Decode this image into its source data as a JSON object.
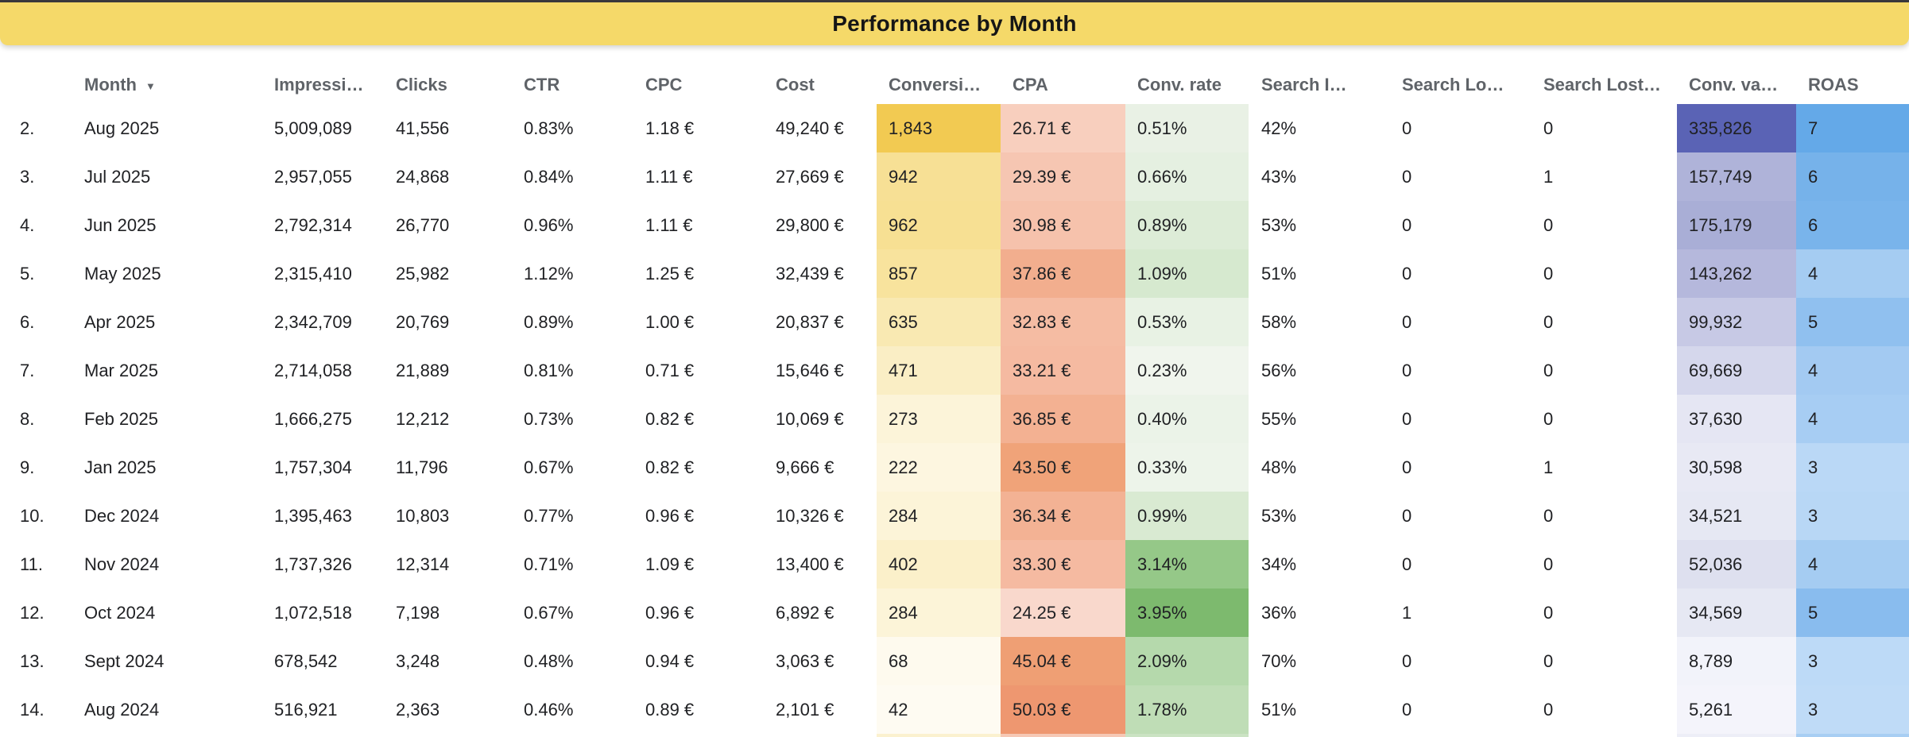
{
  "title": "Performance by Month",
  "colors": {
    "title_bg": "#f5d969",
    "title_text": "#161616",
    "top_edge": "#3a383b",
    "header_text": "#5f6368",
    "body_text": "#202124"
  },
  "header": {
    "month_sort_indicator": "▼"
  },
  "columns": [
    {
      "key": "num",
      "label": ""
    },
    {
      "key": "month",
      "label": "Month",
      "sorted": true
    },
    {
      "key": "impressions",
      "label": "Impressi…"
    },
    {
      "key": "clicks",
      "label": "Clicks"
    },
    {
      "key": "ctr",
      "label": "CTR"
    },
    {
      "key": "cpc",
      "label": "CPC"
    },
    {
      "key": "cost",
      "label": "Cost"
    },
    {
      "key": "conversions",
      "label": "Conversi…"
    },
    {
      "key": "cpa",
      "label": "CPA"
    },
    {
      "key": "conv_rate",
      "label": "Conv. rate"
    },
    {
      "key": "search_is",
      "label": "Search I…"
    },
    {
      "key": "search_lost_budget",
      "label": "Search Lo…"
    },
    {
      "key": "search_lost_rank",
      "label": "Search Lost…"
    },
    {
      "key": "conv_value",
      "label": "Conv. va…"
    },
    {
      "key": "roas",
      "label": "ROAS"
    }
  ],
  "rows": [
    {
      "num": "2.",
      "month": "Aug 2025",
      "impressions": "5,009,089",
      "clicks": "41,556",
      "ctr": "0.83%",
      "cpc": "1.18 €",
      "cost": "49,240 €",
      "conversions": "1,843",
      "cpa": "26.71 €",
      "conv_rate": "0.51%",
      "search_is": "42%",
      "search_lost_budget": "0",
      "search_lost_rank": "0",
      "conv_value": "335,826",
      "roas": "7",
      "cell_colors": {
        "conversions": "#f2ca52",
        "cpa": "#f8cfbe",
        "conv_rate": "#e9f1e5",
        "conv_value": "#5a63b5",
        "roas": "#64a9e8"
      }
    },
    {
      "num": "3.",
      "month": "Jul 2025",
      "impressions": "2,957,055",
      "clicks": "24,868",
      "ctr": "0.84%",
      "cpc": "1.11 €",
      "cost": "27,669 €",
      "conversions": "942",
      "cpa": "29.39 €",
      "conv_rate": "0.66%",
      "search_is": "43%",
      "search_lost_budget": "0",
      "search_lost_rank": "1",
      "conv_value": "157,749",
      "roas": "6",
      "cell_colors": {
        "conversions": "#f7e095",
        "cpa": "#f6c6b2",
        "conv_rate": "#e5f0e1",
        "conv_value": "#afb3d9",
        "roas": "#76b2ea"
      }
    },
    {
      "num": "4.",
      "month": "Jun 2025",
      "impressions": "2,792,314",
      "clicks": "26,770",
      "ctr": "0.96%",
      "cpc": "1.11 €",
      "cost": "29,800 €",
      "conversions": "962",
      "cpa": "30.98 €",
      "conv_rate": "0.89%",
      "search_is": "53%",
      "search_lost_budget": "0",
      "search_lost_rank": "0",
      "conv_value": "175,179",
      "roas": "6",
      "cell_colors": {
        "conversions": "#f7e093",
        "cpa": "#f6c2ac",
        "conv_rate": "#ddecd7",
        "conv_value": "#a9aed6",
        "roas": "#79b4eb"
      }
    },
    {
      "num": "5.",
      "month": "May 2025",
      "impressions": "2,315,410",
      "clicks": "25,982",
      "ctr": "1.12%",
      "cpc": "1.25 €",
      "cost": "32,439 €",
      "conversions": "857",
      "cpa": "37.86 €",
      "conv_rate": "1.09%",
      "search_is": "51%",
      "search_lost_budget": "0",
      "search_lost_rank": "0",
      "conv_value": "143,262",
      "roas": "4",
      "cell_colors": {
        "conversions": "#f8e39d",
        "cpa": "#f2ae8e",
        "conv_rate": "#d6e9cf",
        "conv_value": "#b5b8dc",
        "roas": "#a5ccf2"
      }
    },
    {
      "num": "6.",
      "month": "Apr 2025",
      "impressions": "2,342,709",
      "clicks": "20,769",
      "ctr": "0.89%",
      "cpc": "1.00 €",
      "cost": "20,837 €",
      "conversions": "635",
      "cpa": "32.83 €",
      "conv_rate": "0.53%",
      "search_is": "58%",
      "search_lost_budget": "0",
      "search_lost_rank": "0",
      "conv_value": "99,932",
      "roas": "5",
      "cell_colors": {
        "conversions": "#f9e9b2",
        "cpa": "#f5bca3",
        "conv_rate": "#e8f2e4",
        "conv_value": "#c7c9e5",
        "roas": "#90c0ef"
      }
    },
    {
      "num": "7.",
      "month": "Mar 2025",
      "impressions": "2,714,058",
      "clicks": "21,889",
      "ctr": "0.81%",
      "cpc": "0.71 €",
      "cost": "15,646 €",
      "conversions": "471",
      "cpa": "33.21 €",
      "conv_rate": "0.23%",
      "search_is": "56%",
      "search_lost_budget": "0",
      "search_lost_rank": "0",
      "conv_value": "69,669",
      "roas": "4",
      "cell_colors": {
        "conversions": "#faeec5",
        "cpa": "#f5baa1",
        "conv_rate": "#f0f5ed",
        "conv_value": "#d5d7ec",
        "roas": "#a3caf2"
      }
    },
    {
      "num": "8.",
      "month": "Feb 2025",
      "impressions": "1,666,275",
      "clicks": "12,212",
      "ctr": "0.73%",
      "cpc": "0.82 €",
      "cost": "10,069 €",
      "conversions": "273",
      "cpa": "36.85 €",
      "conv_rate": "0.40%",
      "search_is": "55%",
      "search_lost_budget": "0",
      "search_lost_rank": "0",
      "conv_value": "37,630",
      "roas": "4",
      "cell_colors": {
        "conversions": "#fcf4d9",
        "cpa": "#f3b192",
        "conv_rate": "#ebf3e8",
        "conv_value": "#e5e6f3",
        "roas": "#a7cdf3"
      }
    },
    {
      "num": "9.",
      "month": "Jan 2025",
      "impressions": "1,757,304",
      "clicks": "11,796",
      "ctr": "0.67%",
      "cpc": "0.82 €",
      "cost": "9,666 €",
      "conversions": "222",
      "cpa": "43.50 €",
      "conv_rate": "0.33%",
      "search_is": "48%",
      "search_lost_budget": "0",
      "search_lost_rank": "1",
      "conv_value": "30,598",
      "roas": "3",
      "cell_colors": {
        "conversions": "#fdf6e0",
        "cpa": "#f0a379",
        "conv_rate": "#edf4ea",
        "conv_value": "#e8e9f4",
        "roas": "#bad8f6"
      }
    },
    {
      "num": "10.",
      "month": "Dec 2024",
      "impressions": "1,395,463",
      "clicks": "10,803",
      "ctr": "0.77%",
      "cpc": "0.96 €",
      "cost": "10,326 €",
      "conversions": "284",
      "cpa": "36.34 €",
      "conv_rate": "0.99%",
      "search_is": "53%",
      "search_lost_budget": "0",
      "search_lost_rank": "0",
      "conv_value": "34,521",
      "roas": "3",
      "cell_colors": {
        "conversions": "#fcf4d8",
        "cpa": "#f3b294",
        "conv_rate": "#d9ead2",
        "conv_value": "#e6e8f3",
        "roas": "#b8d7f5"
      }
    },
    {
      "num": "11.",
      "month": "Nov 2024",
      "impressions": "1,737,326",
      "clicks": "12,314",
      "ctr": "0.71%",
      "cpc": "1.09 €",
      "cost": "13,400 €",
      "conversions": "402",
      "cpa": "33.30 €",
      "conv_rate": "3.14%",
      "search_is": "34%",
      "search_lost_budget": "0",
      "search_lost_rank": "0",
      "conv_value": "52,036",
      "roas": "4",
      "cell_colors": {
        "conversions": "#fbf0ca",
        "cpa": "#f5baa1",
        "conv_rate": "#95c888",
        "conv_value": "#dee0ef",
        "roas": "#a5ccf2"
      }
    },
    {
      "num": "12.",
      "month": "Oct 2024",
      "impressions": "1,072,518",
      "clicks": "7,198",
      "ctr": "0.67%",
      "cpc": "0.96 €",
      "cost": "6,892 €",
      "conversions": "284",
      "cpa": "24.25 €",
      "conv_rate": "3.95%",
      "search_is": "36%",
      "search_lost_budget": "1",
      "search_lost_rank": "0",
      "conv_value": "34,569",
      "roas": "5",
      "cell_colors": {
        "conversions": "#fcf4d8",
        "cpa": "#f9d8cc",
        "conv_rate": "#7dba6e",
        "conv_value": "#e6e8f3",
        "roas": "#89bcee"
      }
    },
    {
      "num": "13.",
      "month": "Sept 2024",
      "impressions": "678,542",
      "clicks": "3,248",
      "ctr": "0.48%",
      "cpc": "0.94 €",
      "cost": "3,063 €",
      "conversions": "68",
      "cpa": "45.04 €",
      "conv_rate": "2.09%",
      "search_is": "70%",
      "search_lost_budget": "0",
      "search_lost_rank": "0",
      "conv_value": "8,789",
      "roas": "3",
      "cell_colors": {
        "conversions": "#fefaee",
        "cpa": "#ef9f74",
        "conv_rate": "#b5d9ac",
        "conv_value": "#f2f3fa",
        "roas": "#bddaf7"
      }
    },
    {
      "num": "14.",
      "month": "Aug 2024",
      "impressions": "516,921",
      "clicks": "2,363",
      "ctr": "0.46%",
      "cpc": "0.89 €",
      "cost": "2,101 €",
      "conversions": "42",
      "cpa": "50.03 €",
      "conv_rate": "1.78%",
      "search_is": "51%",
      "search_lost_budget": "0",
      "search_lost_rank": "0",
      "conv_value": "5,261",
      "roas": "3",
      "cell_colors": {
        "conversions": "#fefbf2",
        "cpa": "#ee9770",
        "conv_rate": "#bfddb6",
        "conv_value": "#f4f4fb",
        "roas": "#bfdbf7"
      }
    }
  ],
  "partial_row_colors": {
    "conversions": "#fbf1cf",
    "cpa": "#f6c8b5",
    "conv_rate": "#cbe3c3",
    "conv_value": "#edeef7",
    "roas": "#a8cef3"
  }
}
